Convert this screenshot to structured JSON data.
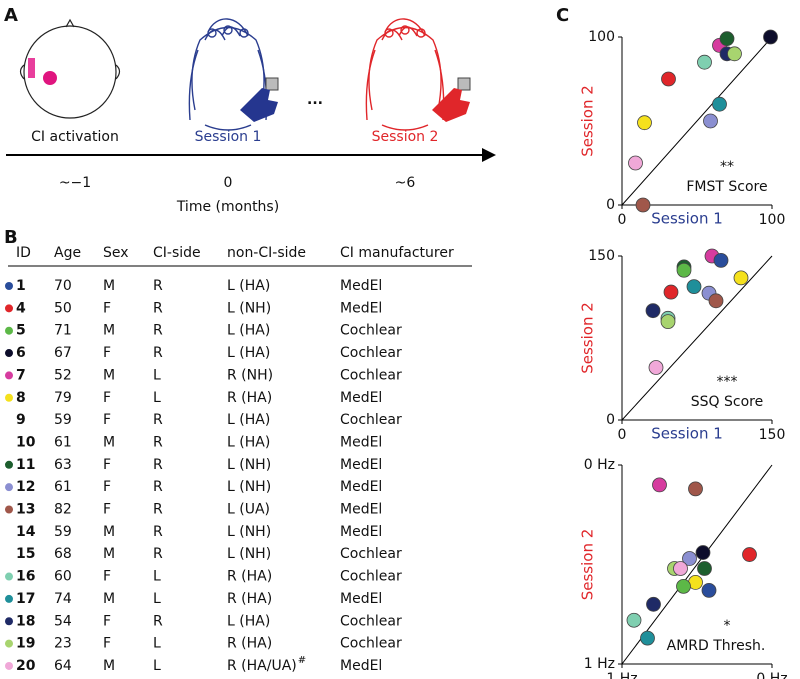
{
  "panel_a": {
    "letter": "A",
    "stages": [
      "CI activation",
      "Session 1",
      "Session 2"
    ],
    "ellipsis": "...",
    "times": [
      "~−1",
      "0",
      "~6"
    ],
    "time_label": "Time (months)"
  },
  "panel_b": {
    "letter": "B",
    "header": [
      "ID",
      "Age",
      "Sex",
      "CI-side",
      "non-CI-side",
      "CI manufacturer"
    ],
    "rows": [
      [
        "1",
        "70",
        "M",
        "R",
        "L (HA)",
        "MedEl"
      ],
      [
        "4",
        "50",
        "F",
        "R",
        "L (NH)",
        "MedEl"
      ],
      [
        "5",
        "71",
        "M",
        "R",
        "L (HA)",
        "Cochlear"
      ],
      [
        "6",
        "67",
        "F",
        "R",
        "L (HA)",
        "Cochlear"
      ],
      [
        "7",
        "52",
        "M",
        "L",
        "R (NH)",
        "Cochlear"
      ],
      [
        "8",
        "79",
        "F",
        "L",
        "R (HA)",
        "MedEl"
      ],
      [
        "9",
        "59",
        "F",
        "R",
        "L (HA)",
        "Cochlear"
      ],
      [
        "10",
        "61",
        "M",
        "R",
        "L (HA)",
        "MedEl"
      ],
      [
        "11",
        "63",
        "F",
        "R",
        "L (NH)",
        "MedEl"
      ],
      [
        "12",
        "61",
        "F",
        "R",
        "L (NH)",
        "MedEl"
      ],
      [
        "13",
        "82",
        "F",
        "R",
        "L (UA)",
        "MedEl"
      ],
      [
        "14",
        "59",
        "M",
        "R",
        "L (NH)",
        "MedEl"
      ],
      [
        "15",
        "68",
        "M",
        "R",
        "L (NH)",
        "Cochlear"
      ],
      [
        "16",
        "60",
        "F",
        "L",
        "R (HA)",
        "Cochlear"
      ],
      [
        "17",
        "74",
        "M",
        "L",
        "R (HA)",
        "MedEl"
      ],
      [
        "18",
        "54",
        "F",
        "R",
        "L (HA)",
        "Cochlear"
      ],
      [
        "19",
        "23",
        "F",
        "L",
        "R (HA)",
        "Cochlear"
      ],
      [
        "20",
        "64",
        "M",
        "L",
        "R (HA/UA)",
        "MedEl"
      ]
    ],
    "row_colors": [
      "#2a4d9b",
      "#e0262a",
      "#5cb847",
      "#0d0d2b",
      "#d63c9f",
      "#f5e11d",
      null,
      null,
      "#1d5e2e",
      "#8b8fd1",
      "#a0574a",
      null,
      null,
      "#7fcfb0",
      "#1f8f9a",
      "#1f2a66",
      "#a8d46f",
      "#f0a8d8"
    ],
    "footnote_mark": "#"
  },
  "panel_c_letter": "C",
  "chart_data": [
    {
      "type": "scatter",
      "xlabel": "Session 1",
      "ylabel": "Session 2",
      "annotation": "**",
      "title": "FMST Score",
      "xlim": [
        0,
        100
      ],
      "ylim": [
        0,
        100
      ],
      "xticks": [
        0,
        100
      ],
      "yticks": [
        0,
        100
      ],
      "x": [
        9,
        14,
        15,
        31,
        55,
        65,
        59,
        65,
        70,
        70,
        75,
        99
      ],
      "values": [
        25,
        0,
        49,
        75,
        85,
        60,
        50,
        95,
        99,
        90,
        90,
        100
      ],
      "colors": [
        "#f0a8d8",
        "#a0574a",
        "#f5e11d",
        "#e0262a",
        "#7fcfb0",
        "#1f8f9a",
        "#8b8fd1",
        "#d63c9f",
        "#1d5e2e",
        "#1f2a66",
        "#a8d46f",
        "#0d0d2b"
      ]
    },
    {
      "type": "scatter",
      "xlabel": "Session 1",
      "ylabel": "Session 2",
      "annotation": "***",
      "title": "SSQ Score",
      "xlim": [
        0,
        150
      ],
      "ylim": [
        0,
        150
      ],
      "xticks": [
        0,
        150
      ],
      "yticks": [
        0,
        150
      ],
      "x": [
        34,
        31,
        46,
        46,
        49,
        62,
        62,
        72,
        87,
        94,
        90,
        99,
        119
      ],
      "values": [
        48,
        100,
        93,
        90,
        117,
        140,
        137,
        122,
        116,
        109,
        150,
        146,
        130
      ],
      "colors": [
        "#f0a8d8",
        "#1f2a66",
        "#7fcfb0",
        "#a8d46f",
        "#e0262a",
        "#1d5e2e",
        "#5cb847",
        "#1f8f9a",
        "#8b8fd1",
        "#a0574a",
        "#d63c9f",
        "#2a4d9b",
        "#f5e11d"
      ]
    },
    {
      "type": "scatter",
      "xlabel": "Session 1",
      "ylabel": "Session 2",
      "annotation": "*",
      "title": "AMRD Thresh.",
      "xlim": [
        1,
        0
      ],
      "ylim": [
        1,
        0
      ],
      "xticks": [
        {
          "value": 1,
          "label": "1 Hz"
        },
        {
          "value": 0,
          "label": "0 Hz"
        }
      ],
      "yticks": [
        {
          "value": 1,
          "label": "1 Hz"
        },
        {
          "value": 0,
          "label": "0 Hz"
        }
      ],
      "x": [
        0.75,
        0.51,
        0.15,
        0.46,
        0.55,
        0.65,
        0.61,
        0.45,
        0.51,
        0.59,
        0.42,
        0.79,
        0.92,
        0.83
      ],
      "values": [
        0.1,
        0.12,
        0.45,
        0.44,
        0.47,
        0.52,
        0.52,
        0.52,
        0.59,
        0.61,
        0.63,
        0.7,
        0.78,
        0.87
      ],
      "colors": [
        "#d63c9f",
        "#a0574a",
        "#e0262a",
        "#0d0d2b",
        "#8b8fd1",
        "#a8d46f",
        "#f0a8d8",
        "#1d5e2e",
        "#f5e11d",
        "#5cb847",
        "#2a4d9b",
        "#1f2a66",
        "#7fcfb0",
        "#1f8f9a"
      ]
    }
  ]
}
